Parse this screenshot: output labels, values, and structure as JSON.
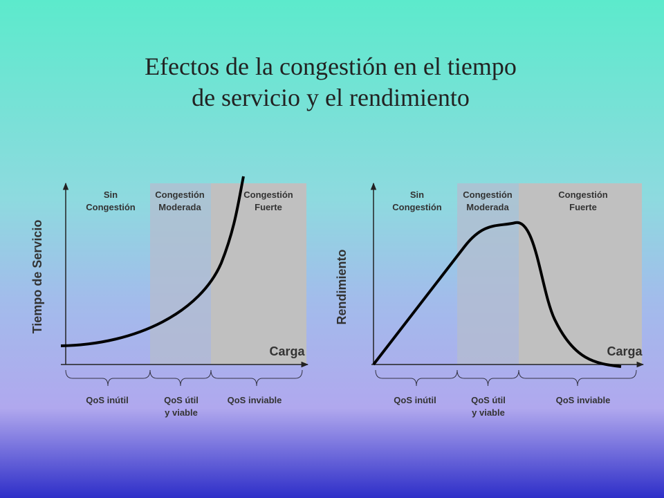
{
  "title": [
    "Efectos de la congestión en el tiempo",
    "de servicio y el rendimiento"
  ],
  "panels": [
    {
      "y_label": "Tiempo de Servicio",
      "x_label": "Carga",
      "regions": [
        [
          "Sin",
          "Congestión"
        ],
        [
          "Congestión",
          "Moderada"
        ],
        [
          "Congestión",
          "Fuerte"
        ]
      ],
      "qos": [
        [
          "QoS inútil"
        ],
        [
          "QoS útil",
          "y viable"
        ],
        [
          "QoS inviable"
        ]
      ]
    },
    {
      "y_label": "Rendimiento",
      "x_label": "Carga",
      "regions": [
        [
          "Sin",
          "Congestión"
        ],
        [
          "Congestión",
          "Moderada"
        ],
        [
          "Congestión",
          "Fuerte"
        ]
      ],
      "qos": [
        [
          "QoS inútil"
        ],
        [
          "QoS útil",
          "y viable"
        ],
        [
          "QoS inviable"
        ]
      ]
    }
  ]
}
